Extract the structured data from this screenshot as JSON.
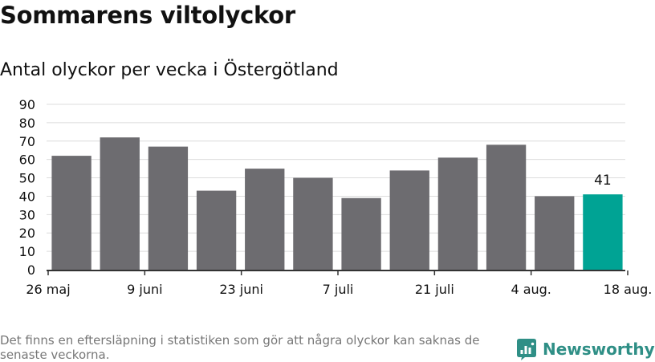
{
  "title": "Sommarens viltolyckor",
  "subtitle": "Antal olyckor per vecka i Östergötland",
  "footnote": "Det finns en eftersläpning i statistiken som gör att några olyckor kan saknas de senaste veckorna.",
  "brand": {
    "name": "Newsworthy",
    "logo_icon": "newsworthy-logo-icon",
    "color": "#2f8f86"
  },
  "colors": {
    "bar": "#6d6c70",
    "highlight": "#00a394",
    "grid": "#dcdcdc",
    "axis": "#333333"
  },
  "chart_data": {
    "type": "bar",
    "x_ticks": [
      "26 maj",
      "9 juni",
      "23 juni",
      "7 juli",
      "21 juli",
      "4 aug.",
      "18 aug."
    ],
    "values": [
      62,
      72,
      67,
      43,
      55,
      50,
      39,
      54,
      61,
      68,
      40,
      41
    ],
    "highlight_index": 11,
    "data_labels": {
      "11": "41"
    },
    "ylim": [
      0,
      90
    ],
    "y_ticks": [
      0,
      10,
      20,
      30,
      40,
      50,
      60,
      70,
      80,
      90
    ],
    "xlabel": "",
    "ylabel": "",
    "grid": true
  }
}
